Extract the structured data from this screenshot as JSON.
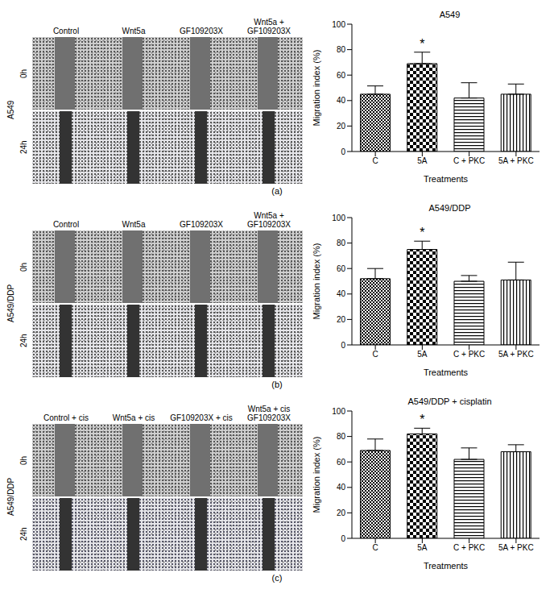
{
  "chart_data": [
    {
      "type": "bar",
      "title": "A549",
      "xlabel": "Treatments",
      "ylabel": "Migration index (%)",
      "categories": [
        "C",
        "5A",
        "C + PKC",
        "5A + PKC"
      ],
      "values": [
        45,
        69,
        42,
        45
      ],
      "errors": [
        6.5,
        9,
        12,
        8
      ],
      "color": "#000000",
      "ylim": [
        0,
        100
      ],
      "yticks": [
        0,
        20,
        40,
        60,
        80,
        100
      ],
      "annotations": [
        {
          "category": "5A",
          "text": "*"
        }
      ]
    },
    {
      "type": "bar",
      "title": "A549/DDP",
      "xlabel": "Treatments",
      "ylabel": "Migration index (%)",
      "categories": [
        "C",
        "5A",
        "C + PKC",
        "5A + PKC"
      ],
      "values": [
        52,
        75,
        50,
        51
      ],
      "errors": [
        8,
        6.5,
        4.5,
        14
      ],
      "color": "#000000",
      "ylim": [
        0,
        100
      ],
      "yticks": [
        0,
        20,
        40,
        60,
        80,
        100
      ],
      "annotations": [
        {
          "category": "5A",
          "text": "*"
        }
      ]
    },
    {
      "type": "bar",
      "title": "A549/DDP + cisplatin",
      "xlabel": "Treatments",
      "ylabel": "Migration index (%)",
      "categories": [
        "C",
        "5A",
        "C + PKC",
        "5A + PKC"
      ],
      "values": [
        69,
        82,
        62,
        68
      ],
      "errors": [
        9,
        4.5,
        9,
        5.5
      ],
      "color": "#000000",
      "ylim": [
        0,
        100
      ],
      "yticks": [
        0,
        20,
        40,
        60,
        80,
        100
      ],
      "annotations": [
        {
          "category": "5A",
          "text": "*"
        }
      ]
    }
  ],
  "figure": {
    "panels": [
      {
        "label": "(a)",
        "cell_line": "A549",
        "rows": [
          "0h",
          "24h"
        ],
        "columns": [
          "Control",
          "Wnt5a",
          "GF109203X",
          "Wnt5a + GF109203X"
        ]
      },
      {
        "label": "(b)",
        "cell_line": "A549/DDP",
        "rows": [
          "0h",
          "24h"
        ],
        "columns": [
          "Control",
          "Wnt5a",
          "GF109203X",
          "Wnt5a + GF109203X"
        ]
      },
      {
        "label": "(c)",
        "cell_line": "A549/DDP",
        "rows": [
          "0h",
          "24h"
        ],
        "columns": [
          "Control + cis",
          "Wnt5a + cis",
          "GF109203X + cis",
          "Wnt5a + cis GF109203X"
        ]
      }
    ]
  }
}
